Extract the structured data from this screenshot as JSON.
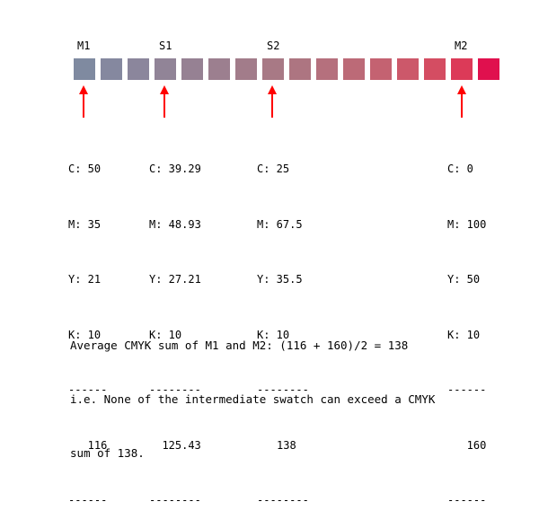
{
  "swatch_labels": {
    "m1": "M1",
    "s1": "S1",
    "s2": "S2",
    "m2": "M2"
  },
  "swatch_colors": [
    "#7f8aa0",
    "#85889f",
    "#8b869c",
    "#918497",
    "#968193",
    "#9c7f8f",
    "#a27c8a",
    "#a87985",
    "#ad7581",
    "#b5707d",
    "#bc6a77",
    "#c46271",
    "#cc586a",
    "#d44d62",
    "#dc3a58",
    "#e0104e"
  ],
  "arrow_color": "#ff0000",
  "columns": {
    "m1": {
      "c": "C: 50",
      "m": "M: 35",
      "y": "Y: 21",
      "k": "K: 10",
      "rule_top": "------",
      "sum": "116",
      "rule_bottom": "------"
    },
    "s1": {
      "c": "C: 39.29",
      "m": "M: 48.93",
      "y": "Y: 27.21",
      "k": "K: 10",
      "rule_top": "--------",
      "sum": "125.43",
      "rule_bottom": "--------"
    },
    "s2": {
      "c": "C: 25",
      "m": "M: 67.5",
      "y": "Y: 35.5",
      "k": "K: 10",
      "rule_top": "--------",
      "sum": "138",
      "rule_bottom": "--------"
    },
    "m2": {
      "c": "C: 0",
      "m": "M: 100",
      "y": "Y: 50",
      "k": "K: 10",
      "rule_top": "------",
      "sum": "160",
      "rule_bottom": "------"
    }
  },
  "note": {
    "line1": "Average CMYK sum of M1 and M2: (116 + 160)/2 = 138",
    "line2": "i.e. None of the intermediate swatch can exceed a CMYK",
    "line3": "sum of 138."
  }
}
